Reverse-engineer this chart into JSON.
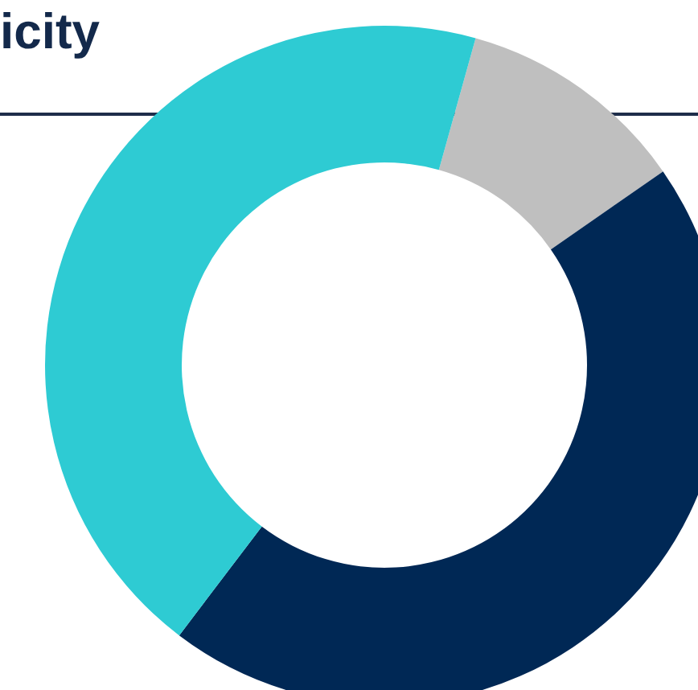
{
  "chart_data": {
    "type": "donut",
    "title": "icity",
    "categories": [
      null,
      null,
      null
    ],
    "values": [
      11,
      45,
      44
    ],
    "colors": [
      "#bfbfbf",
      "#002855",
      "#2ecbd3"
    ]
  }
}
